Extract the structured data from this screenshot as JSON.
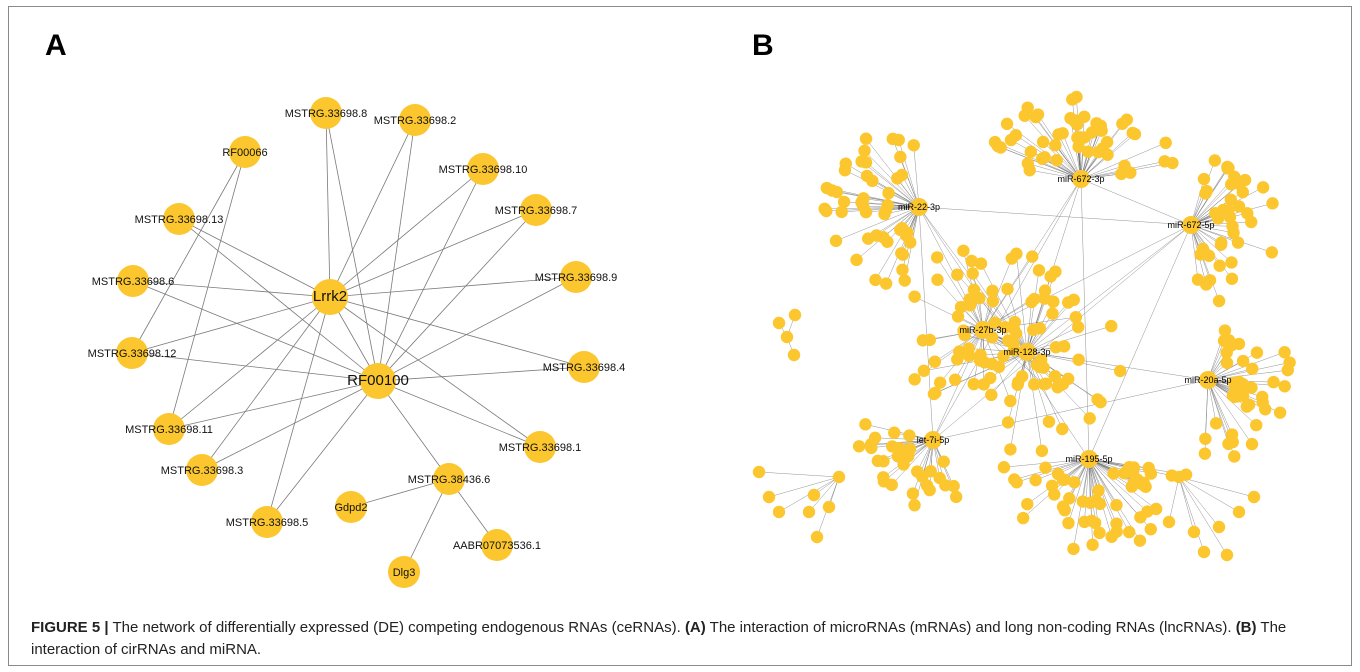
{
  "panels": {
    "a_letter": "A",
    "b_letter": "B"
  },
  "colors": {
    "node": "#fcc62e",
    "edge": "#7a7a7a"
  },
  "network_a": {
    "nodes": [
      {
        "id": "Lrrk2",
        "label": "Lrrk2",
        "hub": true
      },
      {
        "id": "RF00100",
        "label": "RF00100",
        "hub": true
      },
      {
        "id": "MSTRG.33698.8",
        "label": "MSTRG.33698.8"
      },
      {
        "id": "MSTRG.33698.2",
        "label": "MSTRG.33698.2"
      },
      {
        "id": "RF00066",
        "label": "RF00066"
      },
      {
        "id": "MSTRG.33698.10",
        "label": "MSTRG.33698.10"
      },
      {
        "id": "MSTRG.33698.7",
        "label": "MSTRG.33698.7"
      },
      {
        "id": "MSTRG.33698.13",
        "label": "MSTRG.33698.13"
      },
      {
        "id": "MSTRG.33698.9",
        "label": "MSTRG.33698.9"
      },
      {
        "id": "MSTRG.33698.6",
        "label": "MSTRG.33698.6"
      },
      {
        "id": "MSTRG.33698.12",
        "label": "MSTRG.33698.12"
      },
      {
        "id": "MSTRG.33698.4",
        "label": "MSTRG.33698.4"
      },
      {
        "id": "MSTRG.33698.11",
        "label": "MSTRG.33698.11"
      },
      {
        "id": "MSTRG.33698.1",
        "label": "MSTRG.33698.1"
      },
      {
        "id": "MSTRG.38436.6",
        "label": "MSTRG.38436.6"
      },
      {
        "id": "MSTRG.33698.3",
        "label": "MSTRG.33698.3"
      },
      {
        "id": "Gdpd2",
        "label": "Gdpd2"
      },
      {
        "id": "MSTRG.33698.5",
        "label": "MSTRG.33698.5"
      },
      {
        "id": "AABR07073536.1",
        "label": "AABR07073536.1"
      },
      {
        "id": "Dlg3",
        "label": "Dlg3"
      }
    ],
    "edges": [
      [
        "Lrrk2",
        "MSTRG.33698.8"
      ],
      [
        "Lrrk2",
        "MSTRG.33698.2"
      ],
      [
        "Lrrk2",
        "MSTRG.33698.10"
      ],
      [
        "Lrrk2",
        "MSTRG.33698.7"
      ],
      [
        "Lrrk2",
        "MSTRG.33698.13"
      ],
      [
        "Lrrk2",
        "MSTRG.33698.9"
      ],
      [
        "Lrrk2",
        "MSTRG.33698.6"
      ],
      [
        "Lrrk2",
        "MSTRG.33698.12"
      ],
      [
        "Lrrk2",
        "MSTRG.33698.4"
      ],
      [
        "Lrrk2",
        "MSTRG.33698.11"
      ],
      [
        "Lrrk2",
        "MSTRG.33698.1"
      ],
      [
        "Lrrk2",
        "MSTRG.33698.3"
      ],
      [
        "Lrrk2",
        "MSTRG.33698.5"
      ],
      [
        "Lrrk2",
        "RF00100"
      ],
      [
        "RF00100",
        "MSTRG.33698.8"
      ],
      [
        "RF00100",
        "MSTRG.33698.2"
      ],
      [
        "RF00100",
        "MSTRG.33698.10"
      ],
      [
        "RF00100",
        "MSTRG.33698.7"
      ],
      [
        "RF00100",
        "MSTRG.33698.13"
      ],
      [
        "RF00100",
        "MSTRG.33698.9"
      ],
      [
        "RF00100",
        "MSTRG.33698.6"
      ],
      [
        "RF00100",
        "MSTRG.33698.12"
      ],
      [
        "RF00100",
        "MSTRG.33698.4"
      ],
      [
        "RF00100",
        "MSTRG.33698.11"
      ],
      [
        "RF00100",
        "MSTRG.33698.1"
      ],
      [
        "RF00100",
        "MSTRG.33698.3"
      ],
      [
        "RF00100",
        "MSTRG.33698.5"
      ],
      [
        "RF00100",
        "MSTRG.38436.6"
      ],
      [
        "RF00066",
        "MSTRG.33698.12"
      ],
      [
        "RF00066",
        "MSTRG.33698.11"
      ],
      [
        "MSTRG.38436.6",
        "Gdpd2"
      ],
      [
        "MSTRG.38436.6",
        "AABR07073536.1"
      ],
      [
        "MSTRG.38436.6",
        "Dlg3"
      ]
    ]
  },
  "network_b": {
    "hubs": [
      {
        "id": "miR-672-3p",
        "label": "miR-672-3p"
      },
      {
        "id": "miR-22-3p",
        "label": "miR-22-3p"
      },
      {
        "id": "miR-672-5p",
        "label": "miR-672-5p"
      },
      {
        "id": "miR-27b-3p",
        "label": "miR-27b-3p"
      },
      {
        "id": "miR-128-3p",
        "label": "miR-128-3p"
      },
      {
        "id": "miR-20a-5p",
        "label": "miR-20a-5p"
      },
      {
        "id": "let-7i-5p",
        "label": "let-7i-5p"
      },
      {
        "id": "miR-195-5p",
        "label": "miR-195-5p"
      }
    ]
  },
  "caption": {
    "figure_label": "FIGURE 5 |",
    "text1": " The network of differentially expressed (DE) competing endogenous RNAs (ceRNAs). ",
    "a_ref": "(A)",
    "text2": " The interaction of microRNAs (mRNAs) and long non-coding RNAs (lncRNAs). ",
    "b_ref": "(B)",
    "text3": " The interaction of cirRNAs and miRNA."
  }
}
